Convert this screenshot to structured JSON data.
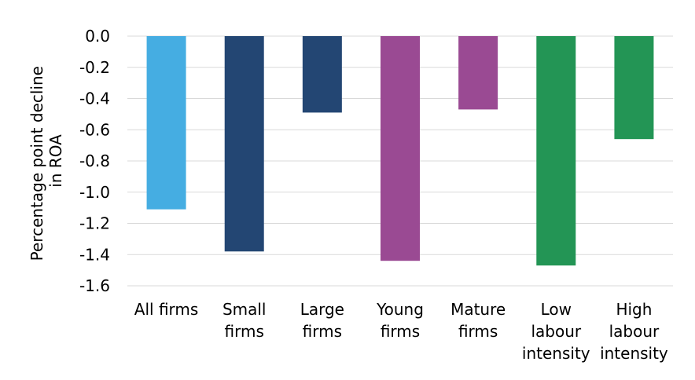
{
  "chart_data": {
    "type": "bar",
    "title": "",
    "xlabel": "",
    "ylabel": "Percentage point decline in ROA",
    "ylabel_lines": [
      "Percentage point decline",
      "in ROA"
    ],
    "ylim": [
      -1.6,
      0.0
    ],
    "yticks": [
      "0.0",
      "-0.2",
      "-0.4",
      "-0.6",
      "-0.8",
      "-1.0",
      "-1.2",
      "-1.4",
      "-1.6"
    ],
    "ytick_values": [
      0.0,
      -0.2,
      -0.4,
      -0.6,
      -0.8,
      -1.0,
      -1.2,
      -1.4,
      -1.6
    ],
    "grid": true,
    "legend": "none",
    "categories": [
      [
        "All firms"
      ],
      [
        "Small",
        "firms"
      ],
      [
        "Large",
        "firms"
      ],
      [
        "Young",
        "firms"
      ],
      [
        "Mature",
        "firms"
      ],
      [
        "Low",
        "labour",
        "intensity"
      ],
      [
        "High",
        "labour",
        "intensity"
      ]
    ],
    "values": [
      -1.11,
      -1.38,
      -0.49,
      -1.44,
      -0.47,
      -1.47,
      -0.66
    ],
    "colors": [
      "#45ade2",
      "#234673",
      "#234673",
      "#9a4a93",
      "#9a4a93",
      "#239555",
      "#239555"
    ]
  }
}
